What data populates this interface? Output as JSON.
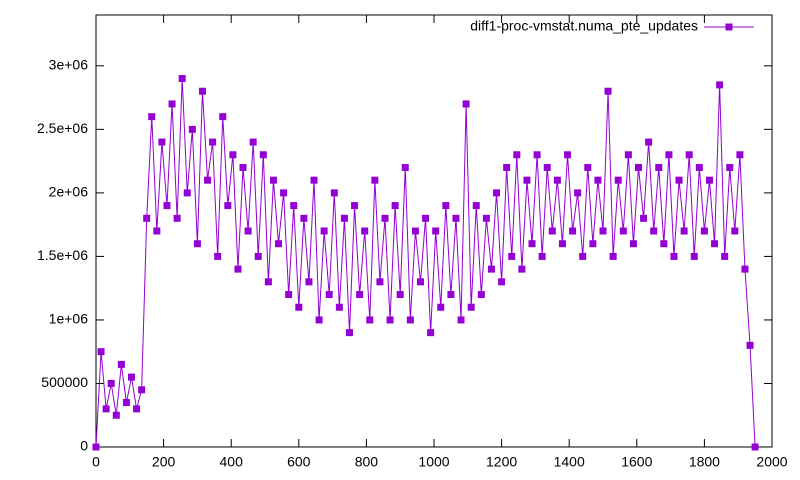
{
  "chart_data": {
    "type": "line",
    "x": [
      0,
      15,
      30,
      45,
      60,
      75,
      90,
      105,
      120,
      135,
      150,
      165,
      180,
      195,
      210,
      225,
      240,
      255,
      270,
      285,
      300,
      315,
      330,
      345,
      360,
      375,
      390,
      405,
      420,
      435,
      450,
      465,
      480,
      495,
      510,
      525,
      540,
      555,
      570,
      585,
      600,
      615,
      630,
      645,
      660,
      675,
      690,
      705,
      720,
      735,
      750,
      765,
      780,
      795,
      810,
      825,
      840,
      855,
      870,
      885,
      900,
      915,
      930,
      945,
      960,
      975,
      990,
      1005,
      1020,
      1035,
      1050,
      1065,
      1080,
      1095,
      1110,
      1125,
      1140,
      1155,
      1170,
      1185,
      1200,
      1215,
      1230,
      1245,
      1260,
      1275,
      1290,
      1305,
      1320,
      1335,
      1350,
      1365,
      1380,
      1395,
      1410,
      1425,
      1440,
      1455,
      1470,
      1485,
      1500,
      1515,
      1530,
      1545,
      1560,
      1575,
      1590,
      1605,
      1620,
      1635,
      1650,
      1665,
      1680,
      1695,
      1710,
      1725,
      1740,
      1755,
      1770,
      1785,
      1800,
      1815,
      1830,
      1845,
      1860,
      1875,
      1890,
      1905,
      1920,
      1935,
      1950
    ],
    "series": [
      {
        "name": "diff1-proc-vmstat.numa_pte_updates",
        "color": "#9400d3",
        "values": [
          0,
          750000,
          300000,
          500000,
          250000,
          650000,
          350000,
          550000,
          300000,
          450000,
          1800000,
          2600000,
          1700000,
          2400000,
          1900000,
          2700000,
          1800000,
          2900000,
          2000000,
          2500000,
          1600000,
          2800000,
          2100000,
          2400000,
          1500000,
          2600000,
          1900000,
          2300000,
          1400000,
          2200000,
          1700000,
          2400000,
          1500000,
          2300000,
          1300000,
          2100000,
          1600000,
          2000000,
          1200000,
          1900000,
          1100000,
          1800000,
          1300000,
          2100000,
          1000000,
          1700000,
          1200000,
          2000000,
          1100000,
          1800000,
          900000,
          1900000,
          1200000,
          1700000,
          1000000,
          2100000,
          1300000,
          1800000,
          1000000,
          1900000,
          1200000,
          2200000,
          1000000,
          1700000,
          1300000,
          1800000,
          900000,
          1700000,
          1100000,
          1900000,
          1200000,
          1800000,
          1000000,
          2700000,
          1100000,
          1900000,
          1200000,
          1800000,
          1400000,
          2000000,
          1300000,
          2200000,
          1500000,
          2300000,
          1400000,
          2100000,
          1600000,
          2300000,
          1500000,
          2200000,
          1700000,
          2100000,
          1600000,
          2300000,
          1700000,
          2000000,
          1500000,
          2200000,
          1600000,
          2100000,
          1700000,
          2800000,
          1500000,
          2100000,
          1700000,
          2300000,
          1600000,
          2200000,
          1800000,
          2400000,
          1700000,
          2200000,
          1600000,
          2300000,
          1500000,
          2100000,
          1700000,
          2300000,
          1500000,
          2200000,
          1700000,
          2100000,
          1600000,
          2850000,
          1500000,
          2200000,
          1700000,
          2300000,
          1400000,
          800000,
          0
        ]
      }
    ],
    "xlim": [
      0,
      2000
    ],
    "xticks": [
      0,
      200,
      400,
      600,
      800,
      1000,
      1200,
      1400,
      1600,
      1800,
      2000
    ],
    "ylim": [
      0,
      3400000
    ],
    "yticks": [
      0,
      500000,
      {
        "value": 1000000,
        "label": "1e+06"
      },
      {
        "value": 1500000,
        "label": "1.5e+06"
      },
      {
        "value": 2000000,
        "label": "2e+06"
      },
      {
        "value": 2500000,
        "label": "2.5e+06"
      },
      {
        "value": 3000000,
        "label": "3e+06"
      }
    ],
    "legend": "top-right"
  }
}
